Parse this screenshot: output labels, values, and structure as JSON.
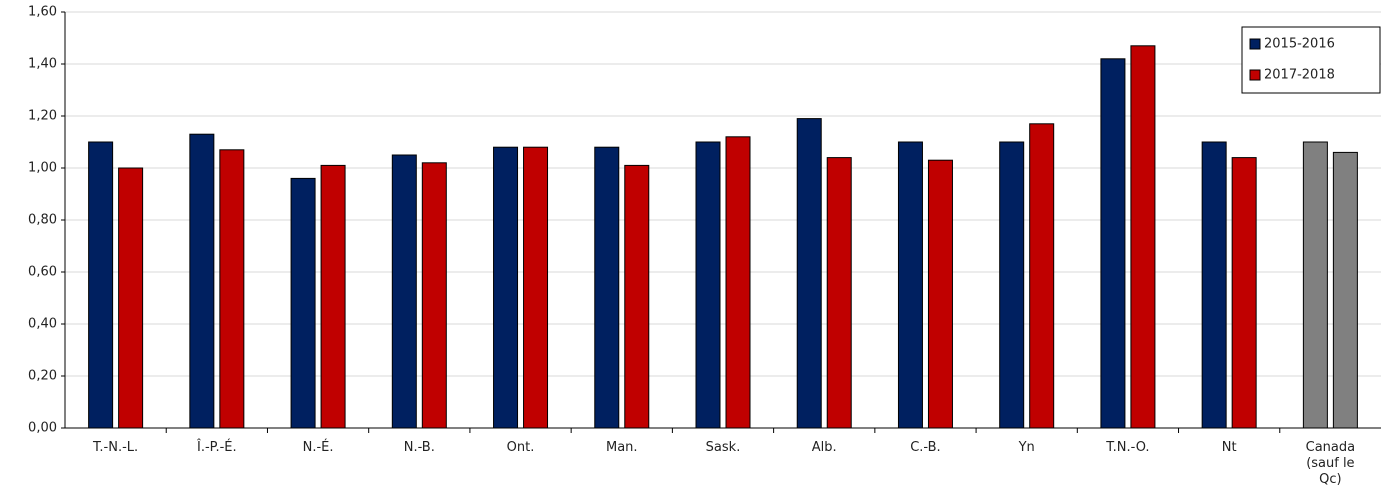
{
  "chart_data": {
    "type": "bar",
    "categories": [
      "T.-N.-L.",
      "Î.-P.-É.",
      "N.-É.",
      "N.-B.",
      "Ont.",
      "Man.",
      "Sask.",
      "Alb.",
      "C.-B.",
      "Yn",
      "T.N.-O.",
      "Nt",
      "Canada (sauf le Qc)"
    ],
    "series": [
      {
        "name": "2015-2016",
        "color": "#002060",
        "values": [
          1.1,
          1.13,
          0.96,
          1.05,
          1.08,
          1.08,
          1.1,
          1.19,
          1.1,
          1.1,
          1.42,
          1.1,
          1.1
        ],
        "colors": [
          "#002060",
          "#002060",
          "#002060",
          "#002060",
          "#002060",
          "#002060",
          "#002060",
          "#002060",
          "#002060",
          "#002060",
          "#002060",
          "#002060",
          "#808080"
        ]
      },
      {
        "name": "2017-2018",
        "color": "#c00000",
        "values": [
          1.0,
          1.07,
          1.01,
          1.02,
          1.08,
          1.01,
          1.12,
          1.04,
          1.03,
          1.17,
          1.47,
          1.04,
          1.06
        ],
        "colors": [
          "#c00000",
          "#c00000",
          "#c00000",
          "#c00000",
          "#c00000",
          "#c00000",
          "#c00000",
          "#c00000",
          "#c00000",
          "#c00000",
          "#c00000",
          "#c00000",
          "#808080"
        ]
      }
    ],
    "ylim": [
      0,
      1.6
    ],
    "yticks": [
      {
        "value": 0,
        "label": "0,00"
      },
      {
        "value": 0.2,
        "label": "0,20"
      },
      {
        "value": 0.4,
        "label": "0,40"
      },
      {
        "value": 0.6,
        "label": "0,60"
      },
      {
        "value": 0.8,
        "label": "0,80"
      },
      {
        "value": 1.0,
        "label": "1,00"
      },
      {
        "value": 1.2,
        "label": "1,20"
      },
      {
        "value": 1.4,
        "label": "1,40"
      },
      {
        "value": 1.6,
        "label": "1,60"
      }
    ],
    "grid": true,
    "legend": "top-right"
  }
}
